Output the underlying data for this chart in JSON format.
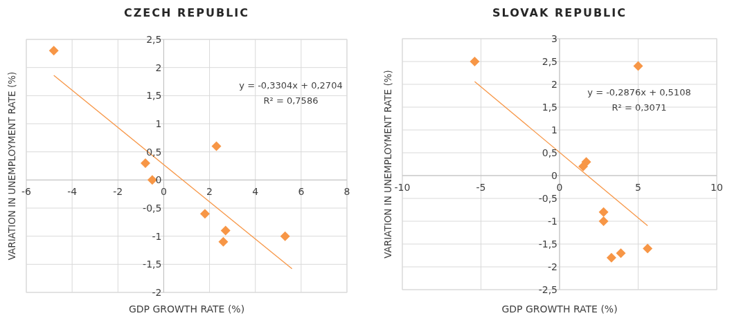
{
  "chart_data": [
    {
      "type": "scatter",
      "title": "CZECH REPUBLIC",
      "xlabel": "GDP GROWTH RATE (%)",
      "ylabel": "VARIATION IN UNEMPLOYMENT RATE (%)",
      "xlim": [
        -6,
        8
      ],
      "ylim": [
        -2,
        2.5
      ],
      "xticks": [
        -6,
        -4,
        -2,
        0,
        2,
        4,
        6,
        8
      ],
      "yticks": [
        -2,
        {
          "value": -1.5,
          "label": "-1,5"
        },
        -1,
        {
          "value": -0.5,
          "label": "-0,5"
        },
        0,
        {
          "value": 0.5,
          "label": "0,5"
        },
        1,
        {
          "value": 1.5,
          "label": "1,5"
        },
        2,
        {
          "value": 2.5,
          "label": "2,5"
        }
      ],
      "grid": true,
      "marker": "diamond",
      "annotations": [
        "y = -0,3304x + 0,2704",
        "R² = 0,7586"
      ],
      "series": [
        {
          "color": "#f79646",
          "x": [
            -4.8,
            -0.8,
            -0.5,
            2.3,
            1.8,
            2.7,
            2.6,
            5.3
          ],
          "values": [
            2.3,
            0.3,
            0,
            0.6,
            -0.6,
            -0.9,
            -1.1,
            -1.0
          ]
        },
        {
          "type": "line",
          "marker": "none",
          "color": "#f79646",
          "x": [
            -4.8,
            5.6
          ],
          "values": [
            1.86,
            -1.58
          ]
        }
      ]
    },
    {
      "type": "scatter",
      "title": "SLOVAK REPUBLIC",
      "xlabel": "GDP GROWTH RATE (%)",
      "ylabel": "VARIATION IN UNEMPLOYMENT RATE (%)",
      "xlim": [
        -10,
        10
      ],
      "ylim": [
        -2.5,
        3
      ],
      "xticks": [
        -10,
        -5,
        0,
        5,
        10
      ],
      "yticks": [
        {
          "value": -2.5,
          "label": "-2,5"
        },
        -2,
        {
          "value": -1.5,
          "label": "-1,5"
        },
        -1,
        {
          "value": -0.5,
          "label": "-0,5"
        },
        0,
        {
          "value": 0.5,
          "label": "0,5"
        },
        1,
        {
          "value": 1.5,
          "label": "1,5"
        },
        2,
        {
          "value": 2.5,
          "label": "2,5"
        },
        3
      ],
      "grid": true,
      "marker": "diamond",
      "annotations": [
        "y = -0,2876x + 0,5108",
        "R² = 0,3071"
      ],
      "series": [
        {
          "color": "#f79646",
          "x": [
            -5.4,
            5.0,
            1.5,
            1.7,
            2.8,
            2.8,
            3.3,
            3.9,
            5.6
          ],
          "values": [
            2.5,
            2.4,
            0.2,
            0.3,
            -0.8,
            -1.0,
            -1.8,
            -1.7,
            -1.6
          ]
        },
        {
          "type": "line",
          "color": "#f79646",
          "x": [
            -5.4,
            5.6
          ],
          "marker": "none",
          "values": [
            2.06,
            -1.1
          ]
        }
      ]
    }
  ]
}
